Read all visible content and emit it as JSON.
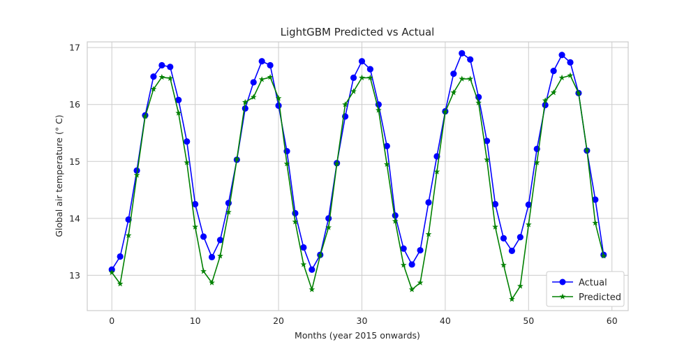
{
  "chart_data": {
    "type": "line",
    "title": "LightGBM Predicted vs Actual",
    "xlabel": "Months (year 2015 onwards)",
    "ylabel": "Global air temperature (° C)",
    "xlim": [
      -2.95,
      61.95
    ],
    "ylim": [
      12.38,
      17.1
    ],
    "xticks": [
      0,
      10,
      20,
      30,
      40,
      50,
      60
    ],
    "yticks": [
      13,
      14,
      15,
      16,
      17
    ],
    "grid": true,
    "legend_position": "lower-right",
    "x": [
      0,
      1,
      2,
      3,
      4,
      5,
      6,
      7,
      8,
      9,
      10,
      11,
      12,
      13,
      14,
      15,
      16,
      17,
      18,
      19,
      20,
      21,
      22,
      23,
      24,
      25,
      26,
      27,
      28,
      29,
      30,
      31,
      32,
      33,
      34,
      35,
      36,
      37,
      38,
      39,
      40,
      41,
      42,
      43,
      44,
      45,
      46,
      47,
      48,
      49,
      50,
      51,
      52,
      53,
      54,
      55,
      56,
      57,
      58,
      59
    ],
    "series": [
      {
        "name": "Actual",
        "color": "#0000ff",
        "marker": "circle",
        "values": [
          13.1,
          13.33,
          13.98,
          14.84,
          15.81,
          16.49,
          16.69,
          16.66,
          16.08,
          15.35,
          14.25,
          13.68,
          13.32,
          13.62,
          14.27,
          15.03,
          15.93,
          16.39,
          16.76,
          16.69,
          15.98,
          15.18,
          14.09,
          13.49,
          13.1,
          13.36,
          14.0,
          14.97,
          15.79,
          16.47,
          16.76,
          16.62,
          16.0,
          15.27,
          14.05,
          13.47,
          13.19,
          13.44,
          14.28,
          15.09,
          15.88,
          16.54,
          16.9,
          16.79,
          16.13,
          15.36,
          14.25,
          13.65,
          13.43,
          13.67,
          14.24,
          15.22,
          15.99,
          16.59,
          16.87,
          16.74,
          16.2,
          15.19,
          14.33,
          13.36
        ]
      },
      {
        "name": "Predicted",
        "color": "#008000",
        "marker": "star",
        "values": [
          13.05,
          12.85,
          13.7,
          14.76,
          15.79,
          16.27,
          16.48,
          16.46,
          15.85,
          14.98,
          13.85,
          13.07,
          12.87,
          13.34,
          14.11,
          15.04,
          16.04,
          16.13,
          16.44,
          16.48,
          16.11,
          14.96,
          13.94,
          13.19,
          12.75,
          13.35,
          13.84,
          14.96,
          16.0,
          16.23,
          16.47,
          16.47,
          15.9,
          14.95,
          13.95,
          13.18,
          12.75,
          12.87,
          13.72,
          14.82,
          15.87,
          16.21,
          16.45,
          16.45,
          16.03,
          15.03,
          13.85,
          13.18,
          12.58,
          12.81,
          13.89,
          14.98,
          16.07,
          16.21,
          16.47,
          16.51,
          16.2,
          15.2,
          13.92,
          13.34
        ]
      }
    ]
  }
}
